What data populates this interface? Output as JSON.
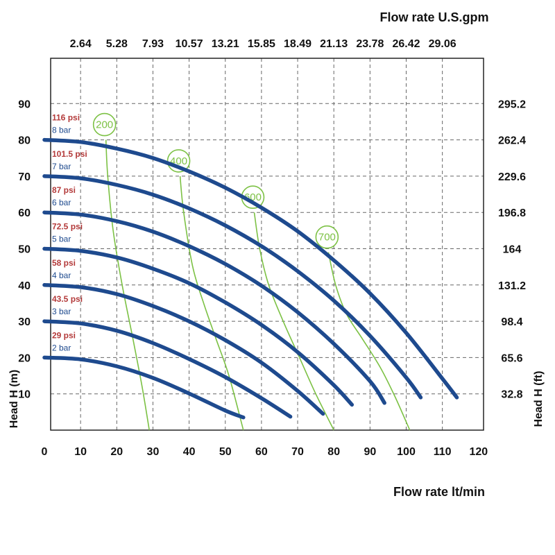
{
  "chart_data": {
    "type": "line",
    "top_axis_title": "Flow rate U.S.gpm",
    "bottom_axis_title": "Flow rate  lt/min",
    "left_axis_title": "Head H (m)",
    "right_axis_title": "Head H (ft)",
    "xlim": [
      0,
      120
    ],
    "ylim": [
      0,
      100
    ],
    "grid": true,
    "x_ticks": [
      "0",
      "10",
      "20",
      "30",
      "40",
      "50",
      "60",
      "70",
      "80",
      "90",
      "100",
      "110",
      "120"
    ],
    "y_ticks_left": [
      "10",
      "20",
      "30",
      "40",
      "50",
      "60",
      "70",
      "80",
      "90"
    ],
    "y_ticks_right": [
      "32.8",
      "65.6",
      "98.4",
      "131.2",
      "164",
      "196.8",
      "229.6",
      "262.4",
      "295.2"
    ],
    "x_ticks_top": [
      "2.64",
      "5.28",
      "7.93",
      "10.57",
      "13.21",
      "15.85",
      "18.49",
      "21.13",
      "23.78",
      "26.42",
      "29.06"
    ],
    "series": [
      {
        "psi": "29 psi",
        "bar": "2 bar",
        "x": [
          0,
          10,
          20,
          30,
          40,
          50,
          55
        ],
        "y": [
          20,
          19.5,
          17.6,
          14.4,
          10.1,
          5.4,
          3.5
        ]
      },
      {
        "psi": "43.5 psi",
        "bar": "3 bar",
        "x": [
          0,
          10,
          20,
          30,
          40,
          50,
          60,
          68
        ],
        "y": [
          30,
          29.4,
          27.4,
          24,
          19.6,
          14.6,
          8.8,
          3.7
        ]
      },
      {
        "psi": "58 psi",
        "bar": "4 bar",
        "x": [
          0,
          10,
          20,
          30,
          40,
          50,
          60,
          70,
          77
        ],
        "y": [
          40,
          39.4,
          37.5,
          34.2,
          30,
          24.8,
          18.6,
          10.8,
          4.5
        ]
      },
      {
        "psi": "72.5 psi",
        "bar": "5 bar",
        "x": [
          0,
          10,
          20,
          30,
          40,
          50,
          60,
          70,
          80,
          85
        ],
        "y": [
          50,
          49.4,
          47.6,
          44.5,
          40.5,
          35.2,
          29,
          21.5,
          12.4,
          7
        ]
      },
      {
        "psi": "87 psi",
        "bar": "6 bar",
        "x": [
          0,
          10,
          20,
          30,
          40,
          50,
          60,
          70,
          80,
          90,
          94
        ],
        "y": [
          60,
          59.4,
          57.6,
          54.7,
          50.7,
          45.8,
          39.8,
          32.5,
          23.8,
          13.5,
          7.5
        ]
      },
      {
        "psi": "101.5 psi",
        "bar": "7 bar",
        "x": [
          0,
          10,
          20,
          30,
          40,
          50,
          60,
          70,
          80,
          90,
          100,
          104
        ],
        "y": [
          70,
          69.4,
          67.6,
          64.9,
          61.1,
          56.4,
          50.7,
          43.8,
          35.7,
          26,
          14.5,
          9
        ]
      },
      {
        "psi": "116 psi",
        "bar": "8 bar",
        "x": [
          0,
          10,
          20,
          30,
          40,
          50,
          60,
          70,
          80,
          90,
          100,
          110,
          114
        ],
        "y": [
          80,
          79.4,
          77.6,
          75,
          71.3,
          66.8,
          61.3,
          54.8,
          46.8,
          37.7,
          26.8,
          14.2,
          9
        ]
      }
    ],
    "rpm_curves": [
      {
        "label": "200",
        "x": [
          17,
          17.5,
          19,
          21.5,
          24.5,
          27,
          29
        ],
        "y": [
          80,
          70,
          55,
          40,
          25,
          12,
          0
        ]
      },
      {
        "label": "400",
        "x": [
          37.5,
          38.5,
          41,
          44,
          47.5,
          51,
          55
        ],
        "y": [
          70,
          60,
          45,
          35,
          25,
          15,
          0
        ]
      },
      {
        "label": "600",
        "x": [
          58,
          59.5,
          62,
          66,
          70.5,
          75,
          80
        ],
        "y": [
          60,
          50,
          40,
          30,
          20,
          10,
          0
        ]
      },
      {
        "label": "700",
        "x": [
          78.5,
          80.5,
          83.5,
          88,
          93,
          97,
          101
        ],
        "y": [
          49,
          40,
          32,
          25,
          17,
          9,
          0
        ]
      }
    ]
  },
  "colors": {
    "curve": "#1e4a8e",
    "psi": "#b33a3a",
    "bar": "#1e4a8e",
    "rpm": "#7cc144",
    "grid": "#666666",
    "frame": "#222222",
    "text": "#111111"
  }
}
